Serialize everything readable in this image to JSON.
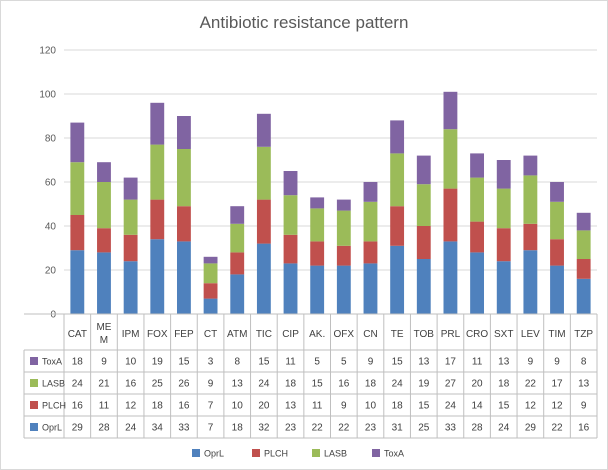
{
  "chart_data": {
    "type": "bar",
    "stacked": true,
    "title": "Antibiotic resistance pattern",
    "categories": [
      "CAT",
      "MEM",
      "IPM",
      "FOX",
      "FEP",
      "CT",
      "ATM",
      "TIC",
      "CIP",
      "AK.",
      "OFX",
      "CN",
      "TE",
      "TOB",
      "PRL",
      "CRO",
      "SXT",
      "LEV",
      "TIM",
      "TZP"
    ],
    "category_labels": [
      [
        "CAT"
      ],
      [
        "ME",
        "M"
      ],
      [
        "IPM"
      ],
      [
        "FOX"
      ],
      [
        "FEP"
      ],
      [
        "CT"
      ],
      [
        "ATM"
      ],
      [
        "TIC"
      ],
      [
        "CIP"
      ],
      [
        "AK."
      ],
      [
        "OFX"
      ],
      [
        "CN"
      ],
      [
        "TE"
      ],
      [
        "TOB"
      ],
      [
        "PRL"
      ],
      [
        "CRO"
      ],
      [
        "SXT"
      ],
      [
        "LEV"
      ],
      [
        "TIM"
      ],
      [
        "TZP"
      ]
    ],
    "series": [
      {
        "name": "OprL",
        "color": "#4f81bd",
        "values": [
          29,
          28,
          24,
          34,
          33,
          7,
          18,
          32,
          23,
          22,
          22,
          23,
          31,
          25,
          33,
          28,
          24,
          29,
          22,
          16
        ]
      },
      {
        "name": "PLCH",
        "color": "#c0504d",
        "values": [
          16,
          11,
          12,
          18,
          16,
          7,
          10,
          20,
          13,
          11,
          9,
          10,
          18,
          15,
          24,
          14,
          15,
          12,
          12,
          9
        ]
      },
      {
        "name": "LASB",
        "color": "#9bbb59",
        "values": [
          24,
          21,
          16,
          25,
          26,
          9,
          13,
          24,
          18,
          15,
          16,
          18,
          24,
          19,
          27,
          20,
          18,
          22,
          17,
          13
        ]
      },
      {
        "name": "ToxA",
        "color": "#8064a2",
        "values": [
          18,
          9,
          10,
          19,
          15,
          3,
          8,
          15,
          11,
          5,
          5,
          9,
          15,
          13,
          17,
          11,
          13,
          9,
          9,
          8
        ]
      }
    ],
    "ylim": [
      0,
      120
    ],
    "yticks": [
      0,
      20,
      40,
      60,
      80,
      100,
      120
    ],
    "grid": true,
    "legend": "bottom",
    "data_table": true,
    "table_row_order": [
      "ToxA",
      "LASB",
      "PLCH",
      "OprL"
    ]
  }
}
